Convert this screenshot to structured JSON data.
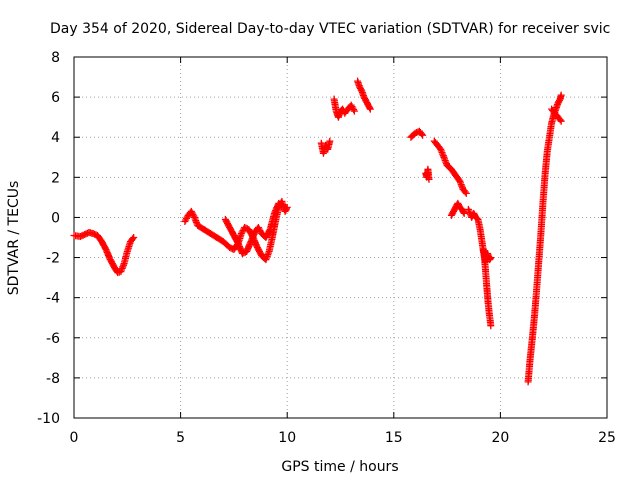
{
  "chart_data": {
    "type": "scatter",
    "title": "Day 354 of 2020, Sidereal Day-to-day VTEC variation (SDTVAR) for receiver svic",
    "xlabel": "GPS time / hours",
    "ylabel": "SDTVAR / TECUs",
    "xlim": [
      0,
      25
    ],
    "ylim": [
      -10,
      8
    ],
    "x_ticks": [
      0,
      5,
      10,
      15,
      20,
      25
    ],
    "x_tick_labels": [
      "0",
      "5",
      "10",
      "15",
      "20",
      "25"
    ],
    "y_ticks": [
      -10,
      -8,
      -6,
      -4,
      -2,
      0,
      2,
      4,
      6,
      8
    ],
    "y_tick_labels": [
      "-10",
      "-8",
      "-6",
      "-4",
      "-2",
      "0",
      "2",
      "4",
      "6",
      "8"
    ],
    "grid": true,
    "marker": "plus",
    "series": [
      {
        "color": "#ff0000",
        "segments": [
          [
            [
              0.0,
              -0.9
            ],
            [
              0.3,
              -0.95
            ],
            [
              0.5,
              -0.85
            ],
            [
              0.7,
              -0.75
            ],
            [
              0.9,
              -0.8
            ],
            [
              1.1,
              -0.9
            ],
            [
              1.3,
              -1.2
            ],
            [
              1.5,
              -1.6
            ],
            [
              1.7,
              -2.1
            ],
            [
              1.9,
              -2.5
            ],
            [
              2.05,
              -2.75
            ],
            [
              2.2,
              -2.7
            ],
            [
              2.35,
              -2.3
            ],
            [
              2.5,
              -1.7
            ],
            [
              2.65,
              -1.2
            ],
            [
              2.8,
              -1.0
            ]
          ],
          [
            [
              5.2,
              -0.2
            ],
            [
              5.35,
              0.1
            ],
            [
              5.5,
              0.3
            ],
            [
              5.65,
              0.0
            ],
            [
              5.8,
              -0.4
            ],
            [
              6.1,
              -0.6
            ],
            [
              6.4,
              -0.8
            ],
            [
              6.7,
              -1.0
            ],
            [
              7.0,
              -1.2
            ],
            [
              7.3,
              -1.5
            ],
            [
              7.5,
              -1.6
            ],
            [
              7.7,
              -1.3
            ],
            [
              7.85,
              -0.8
            ],
            [
              8.0,
              -0.5
            ],
            [
              8.2,
              -0.6
            ],
            [
              8.4,
              -1.0
            ],
            [
              8.6,
              -1.5
            ],
            [
              8.8,
              -1.9
            ],
            [
              9.0,
              -2.1
            ],
            [
              9.15,
              -1.7
            ],
            [
              9.3,
              -1.0
            ],
            [
              9.45,
              -0.2
            ],
            [
              9.6,
              0.5
            ],
            [
              9.75,
              0.8
            ],
            [
              9.9,
              0.3
            ],
            [
              10.0,
              0.5
            ]
          ],
          [
            [
              7.1,
              -0.1
            ],
            [
              7.3,
              -0.5
            ],
            [
              7.5,
              -0.9
            ],
            [
              7.7,
              -1.3
            ],
            [
              7.9,
              -1.8
            ],
            [
              8.1,
              -1.7
            ],
            [
              8.3,
              -1.2
            ],
            [
              8.5,
              -0.7
            ],
            [
              8.65,
              -0.5
            ],
            [
              8.8,
              -0.8
            ],
            [
              9.0,
              -1.0
            ],
            [
              9.2,
              -0.6
            ],
            [
              9.4,
              0.2
            ],
            [
              9.6,
              0.7
            ],
            [
              9.8,
              0.6
            ]
          ],
          [
            [
              11.6,
              3.7
            ],
            [
              11.7,
              3.2
            ],
            [
              11.8,
              3.6
            ],
            [
              11.9,
              3.4
            ],
            [
              12.0,
              3.8
            ]
          ],
          [
            [
              12.2,
              5.9
            ],
            [
              12.3,
              5.3
            ],
            [
              12.4,
              5.0
            ],
            [
              12.5,
              5.3
            ],
            [
              12.6,
              5.4
            ],
            [
              12.7,
              5.2
            ],
            [
              12.85,
              5.4
            ],
            [
              13.0,
              5.6
            ],
            [
              13.15,
              5.3
            ]
          ],
          [
            [
              13.3,
              6.8
            ],
            [
              13.4,
              6.5
            ],
            [
              13.5,
              6.3
            ],
            [
              13.6,
              6.0
            ],
            [
              13.7,
              5.8
            ],
            [
              13.8,
              5.6
            ],
            [
              13.9,
              5.4
            ]
          ],
          [
            [
              15.8,
              4.0
            ],
            [
              16.0,
              4.2
            ],
            [
              16.2,
              4.3
            ],
            [
              16.35,
              4.1
            ]
          ],
          [
            [
              16.5,
              2.2
            ],
            [
              16.55,
              2.0
            ],
            [
              16.6,
              2.4
            ],
            [
              16.65,
              1.9
            ]
          ],
          [
            [
              16.9,
              3.8
            ],
            [
              17.05,
              3.6
            ],
            [
              17.2,
              3.4
            ],
            [
              17.35,
              3.0
            ],
            [
              17.5,
              2.6
            ],
            [
              17.7,
              2.4
            ],
            [
              17.9,
              2.1
            ],
            [
              18.1,
              1.8
            ],
            [
              18.25,
              1.4
            ],
            [
              18.4,
              1.2
            ]
          ],
          [
            [
              17.7,
              0.1
            ],
            [
              17.8,
              0.3
            ],
            [
              17.9,
              0.5
            ],
            [
              18.0,
              0.7
            ],
            [
              18.1,
              0.5
            ],
            [
              18.2,
              0.4
            ],
            [
              18.3,
              0.2
            ]
          ],
          [
            [
              18.5,
              0.4
            ],
            [
              18.65,
              0.0
            ],
            [
              18.75,
              0.2
            ],
            [
              18.85,
              0.0
            ],
            [
              18.95,
              -0.1
            ],
            [
              19.05,
              -0.6
            ],
            [
              19.15,
              -1.3
            ],
            [
              19.25,
              -2.0
            ],
            [
              19.3,
              -2.6
            ],
            [
              19.35,
              -3.3
            ],
            [
              19.42,
              -4.2
            ],
            [
              19.48,
              -4.8
            ],
            [
              19.55,
              -5.4
            ]
          ],
          [
            [
              19.2,
              -1.6
            ],
            [
              19.3,
              -2.2
            ],
            [
              19.4,
              -1.8
            ],
            [
              19.5,
              -2.1
            ],
            [
              19.55,
              -2.0
            ]
          ],
          [
            [
              21.3,
              -8.2
            ],
            [
              21.35,
              -7.6
            ],
            [
              21.4,
              -7.0
            ],
            [
              21.5,
              -6.0
            ],
            [
              21.6,
              -4.9
            ],
            [
              21.7,
              -3.6
            ],
            [
              21.8,
              -2.2
            ],
            [
              21.9,
              -0.8
            ],
            [
              22.0,
              0.8
            ],
            [
              22.1,
              2.2
            ],
            [
              22.2,
              3.3
            ],
            [
              22.3,
              4.0
            ],
            [
              22.4,
              4.7
            ],
            [
              22.5,
              5.1
            ],
            [
              22.6,
              5.4
            ],
            [
              22.7,
              5.7
            ],
            [
              22.8,
              5.9
            ],
            [
              22.85,
              6.1
            ]
          ],
          [
            [
              22.4,
              5.4
            ],
            [
              22.55,
              5.2
            ],
            [
              22.7,
              5.0
            ],
            [
              22.85,
              4.8
            ]
          ]
        ]
      }
    ]
  }
}
